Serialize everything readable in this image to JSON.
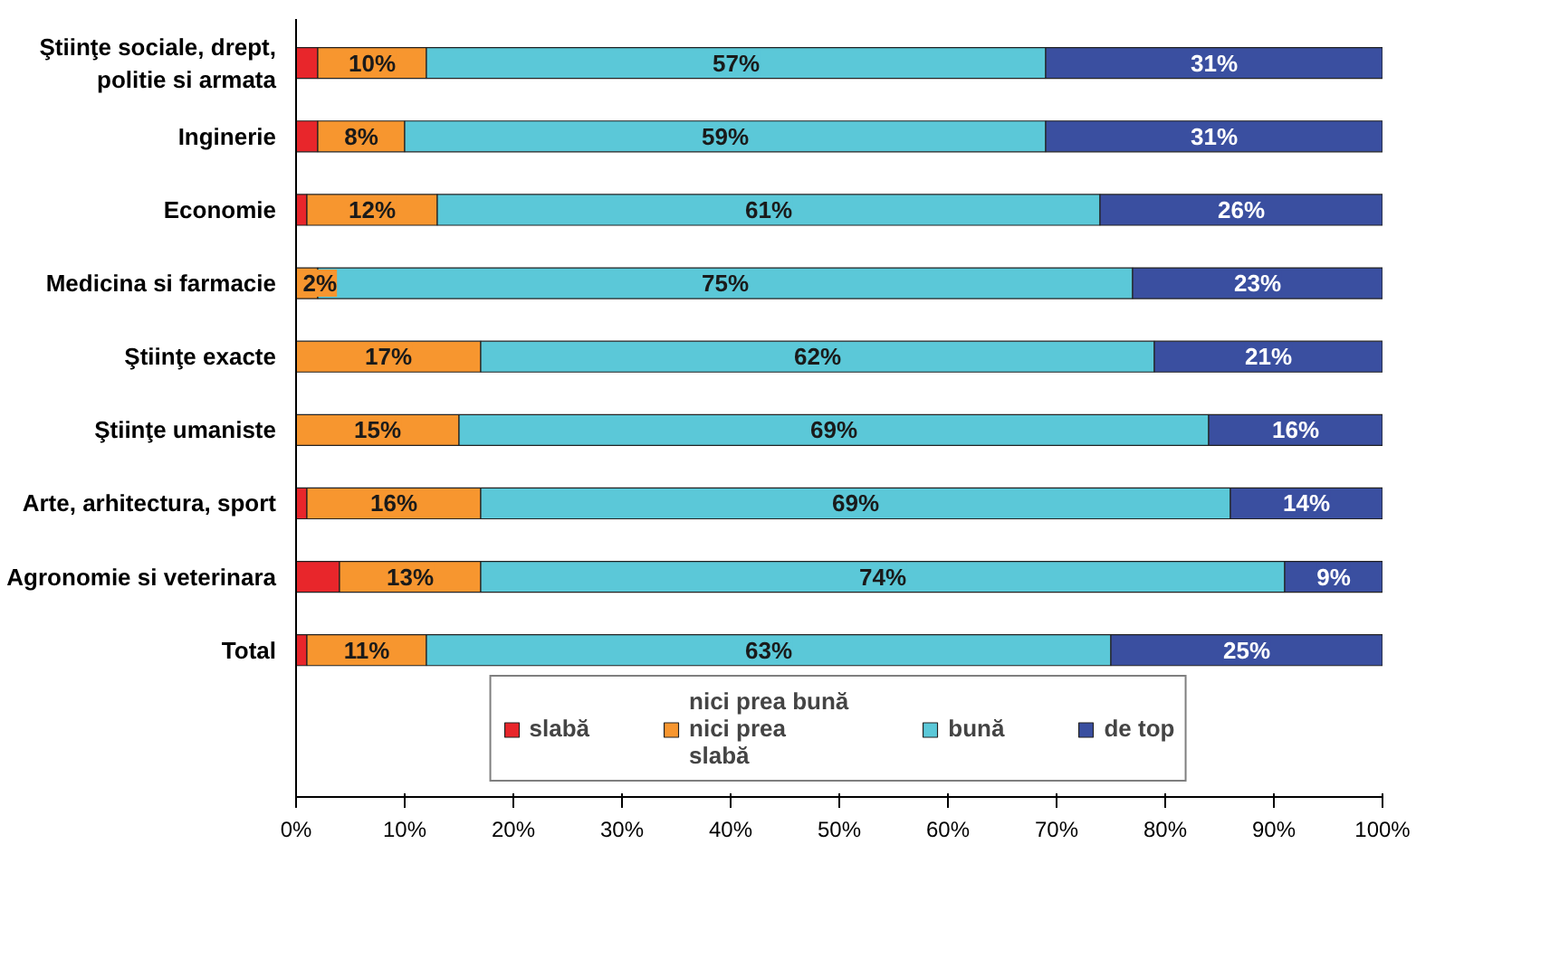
{
  "chart_data": {
    "type": "bar",
    "orientation": "horizontal",
    "stacked": true,
    "categories": [
      "Ştiinţe sociale, drept, politie si armata",
      "Inginerie",
      "Economie",
      "Medicina si farmacie",
      "Ştiinţe exacte",
      "Ştiinţe umaniste",
      "Arte, arhitectura, sport",
      "Agronomie si veterinara",
      "Total"
    ],
    "series": [
      {
        "name": "slabă",
        "color": "#e8262b",
        "values": [
          2,
          2,
          1,
          0,
          0,
          0,
          1,
          4,
          1
        ],
        "value_labels": [
          null,
          null,
          null,
          null,
          null,
          null,
          null,
          null,
          null
        ]
      },
      {
        "name": "nici prea bună nici prea slabă",
        "color": "#f7962f",
        "values": [
          10,
          8,
          12,
          2,
          17,
          15,
          16,
          13,
          11
        ],
        "value_labels": [
          "10%",
          "8%",
          "12%",
          "2%",
          "17%",
          "15%",
          "16%",
          "13%",
          "11%"
        ]
      },
      {
        "name": "bună",
        "color": "#5bc8d8",
        "values": [
          57,
          59,
          61,
          75,
          62,
          69,
          69,
          74,
          63
        ],
        "value_labels": [
          "57%",
          "59%",
          "61%",
          "75%",
          "62%",
          "69%",
          "69%",
          "74%",
          "63%"
        ]
      },
      {
        "name": "de top",
        "color": "#3a4fa0",
        "values": [
          31,
          31,
          26,
          23,
          21,
          16,
          14,
          9,
          25
        ],
        "value_labels": [
          "31%",
          "31%",
          "26%",
          "23%",
          "21%",
          "16%",
          "14%",
          "9%",
          "25%"
        ]
      }
    ],
    "xlim": [
      0,
      100
    ],
    "xticks": [
      {
        "value": 0,
        "label": "0%"
      },
      {
        "value": 10,
        "label": "10%"
      },
      {
        "value": 20,
        "label": "20%"
      },
      {
        "value": 30,
        "label": "30%"
      },
      {
        "value": 40,
        "label": "40%"
      },
      {
        "value": 50,
        "label": "50%"
      },
      {
        "value": 60,
        "label": "60%"
      },
      {
        "value": 70,
        "label": "70%"
      },
      {
        "value": 80,
        "label": "80%"
      },
      {
        "value": 90,
        "label": "90%"
      },
      {
        "value": 100,
        "label": "100%"
      }
    ],
    "grid": false,
    "legend": "bottom"
  }
}
